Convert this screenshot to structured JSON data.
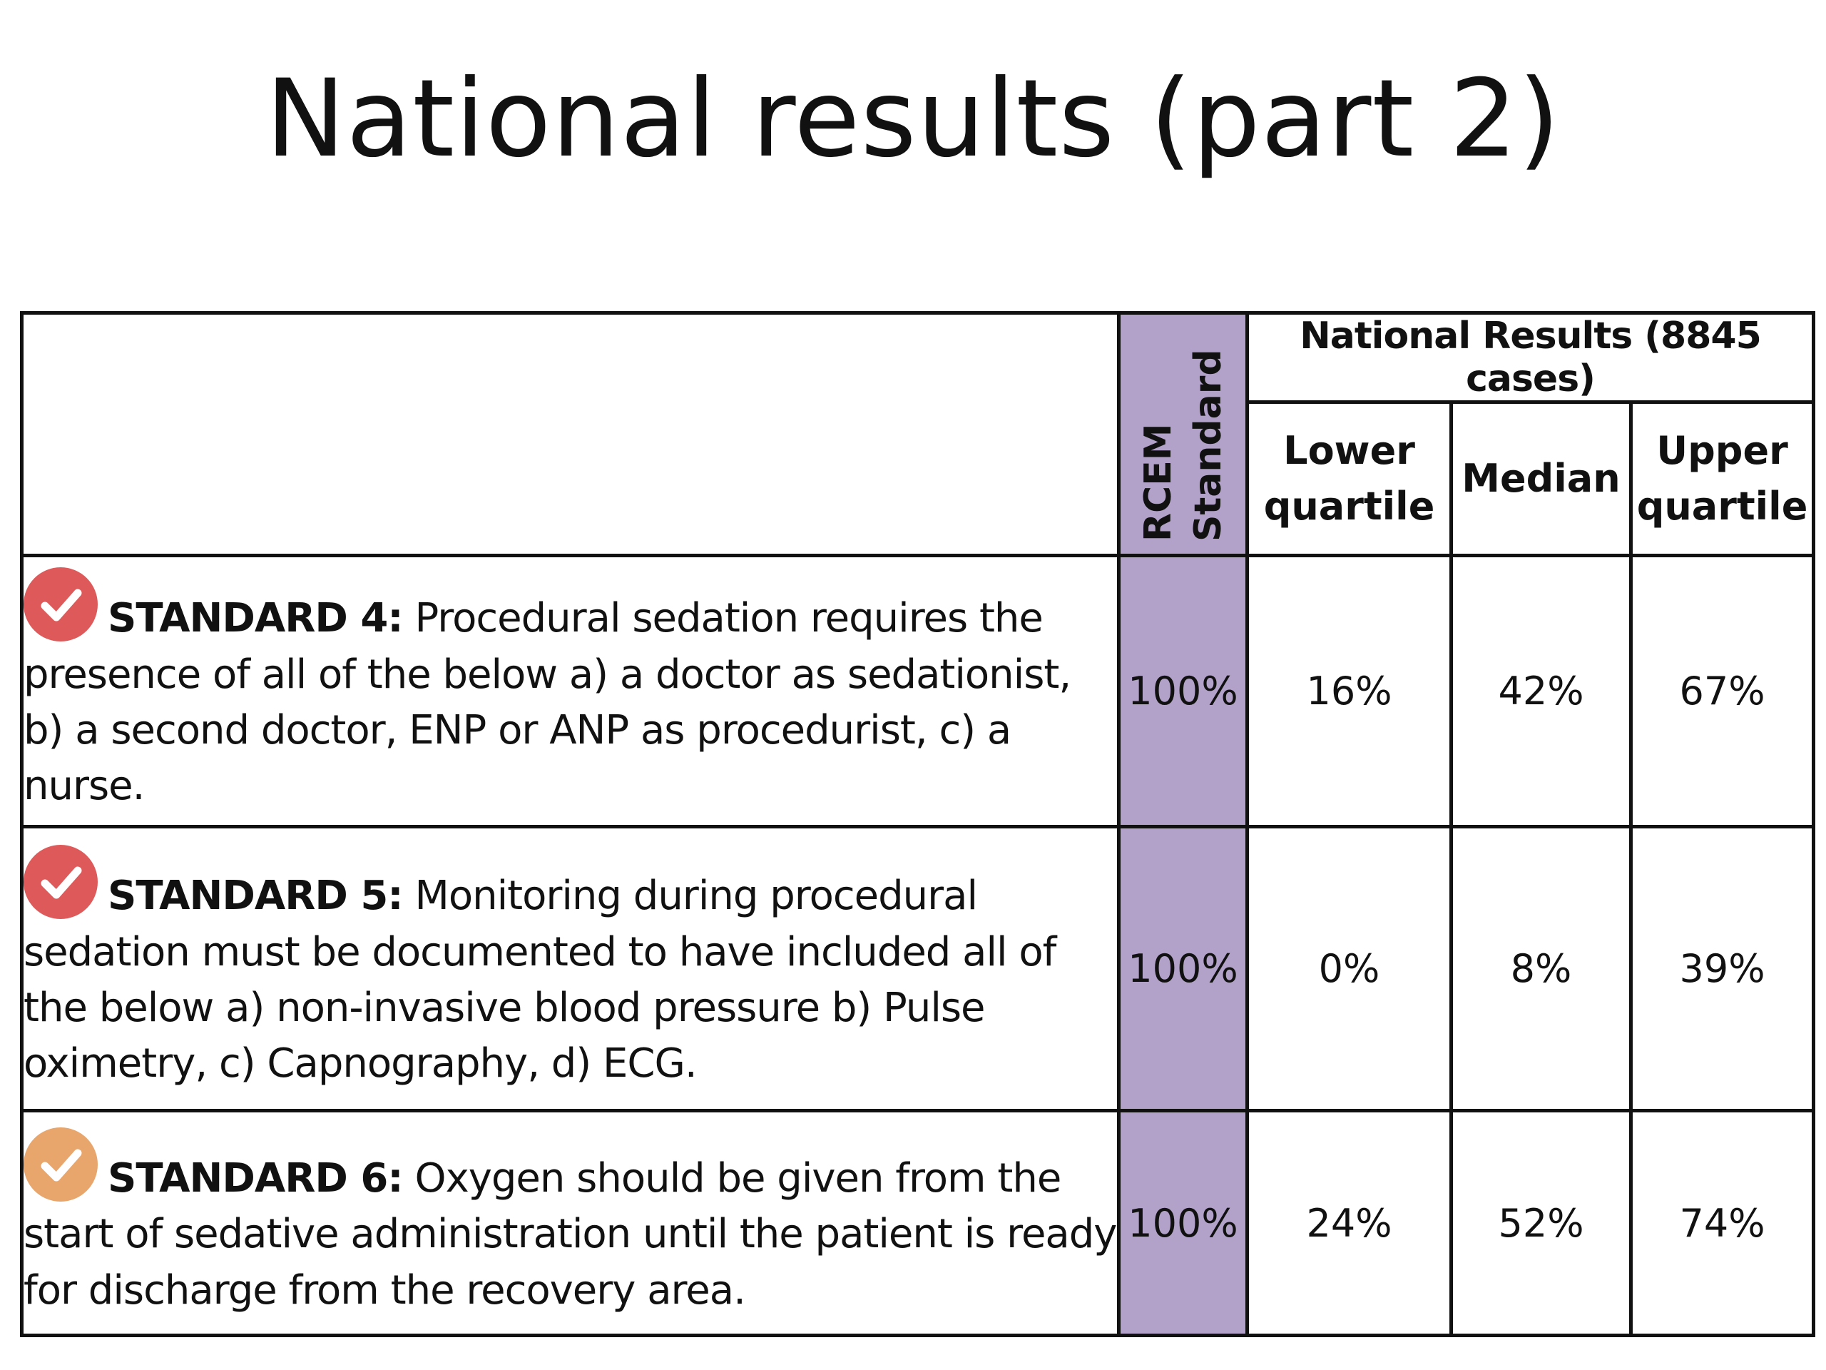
{
  "title": "National results (part 2)",
  "table": {
    "rcem_header_line1": "RCEM",
    "rcem_header_line2": "Standard",
    "group_header": "National Results (8845 cases)",
    "lower_quartile_line1": "Lower",
    "lower_quartile_line2": "quartile",
    "median": "Median",
    "upper_quartile_line1": "Upper",
    "upper_quartile_line2": "quartile",
    "rows": [
      {
        "icon": "check-circle-icon",
        "icon_color": "#de5a5a",
        "label": "STANDARD 4:",
        "text": "Procedural sedation requires the presence of all of the below a) a doctor as sedationist, b) a second doctor, ENP or ANP as procedurist, c) a nurse.",
        "rcem": "100%",
        "lower": "16%",
        "median": "42%",
        "upper": "67%"
      },
      {
        "icon": "check-circle-icon",
        "icon_color": "#de5a5a",
        "label": "STANDARD 5:",
        "text": "Monitoring during procedural sedation must be documented to have included all of the below a) non-invasive blood pressure b) Pulse oximetry, c) Capnography, d) ECG.",
        "rcem": "100%",
        "lower": "0%",
        "median": "8%",
        "upper": "39%"
      },
      {
        "icon": "check-circle-icon",
        "icon_color": "#e8a56c",
        "label": "STANDARD 6:",
        "text": "Oxygen should be given from the start of sedative administration until the patient is ready for discharge from the recovery area.",
        "rcem": "100%",
        "lower": "24%",
        "median": "52%",
        "upper": "74%"
      }
    ]
  }
}
